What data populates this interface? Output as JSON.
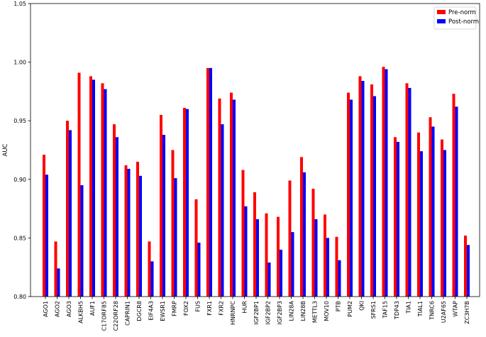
{
  "chart_data": {
    "type": "bar",
    "ylabel": "AUC",
    "ylim": [
      0.8,
      1.05
    ],
    "yticks": [
      "0.80",
      "0.85",
      "0.90",
      "0.95",
      "1.00",
      "1.05"
    ],
    "grid": false,
    "legend_position": "top-right",
    "categories": [
      "AGO1",
      "AGO2",
      "AGO3",
      "ALKBH5",
      "AUF1",
      "C17ORF85",
      "C22ORF28",
      "CAPRIN1",
      "DGCR8",
      "EIF4A3",
      "EWSR1",
      "FMRP",
      "FOX2",
      "FUS",
      "FXR1",
      "FXR2",
      "HNRNPC",
      "HUR",
      "IGF2BP1",
      "IGF2BP2",
      "IGF2BP3",
      "LIN28A",
      "LIN28B",
      "METTL3",
      "MOV10",
      "PTB",
      "PUM2",
      "QKI",
      "SFRS1",
      "TAF15",
      "TDP43",
      "TIA1",
      "TIAL1",
      "TNRC6",
      "U2AF65",
      "WTAP",
      "ZC3H7B"
    ],
    "series": [
      {
        "name": "Pre-norm",
        "color": "#ff0000",
        "values": [
          0.921,
          0.847,
          0.95,
          0.991,
          0.988,
          0.982,
          0.947,
          0.912,
          0.915,
          0.847,
          0.955,
          0.925,
          0.961,
          0.883,
          0.995,
          0.969,
          0.974,
          0.908,
          0.889,
          0.871,
          0.868,
          0.899,
          0.919,
          0.892,
          0.87,
          0.851,
          0.974,
          0.988,
          0.981,
          0.996,
          0.936,
          0.982,
          0.94,
          0.953,
          0.934,
          0.973,
          0.852
        ]
      },
      {
        "name": "Post-norm",
        "color": "#0000ff",
        "values": [
          0.904,
          0.824,
          0.942,
          0.895,
          0.985,
          0.977,
          0.936,
          0.909,
          0.903,
          0.83,
          0.938,
          0.901,
          0.96,
          0.846,
          0.995,
          0.947,
          0.968,
          0.877,
          0.866,
          0.829,
          0.84,
          0.855,
          0.906,
          0.866,
          0.85,
          0.831,
          0.968,
          0.984,
          0.971,
          0.994,
          0.932,
          0.978,
          0.924,
          0.945,
          0.925,
          0.962,
          0.844
        ]
      }
    ]
  }
}
